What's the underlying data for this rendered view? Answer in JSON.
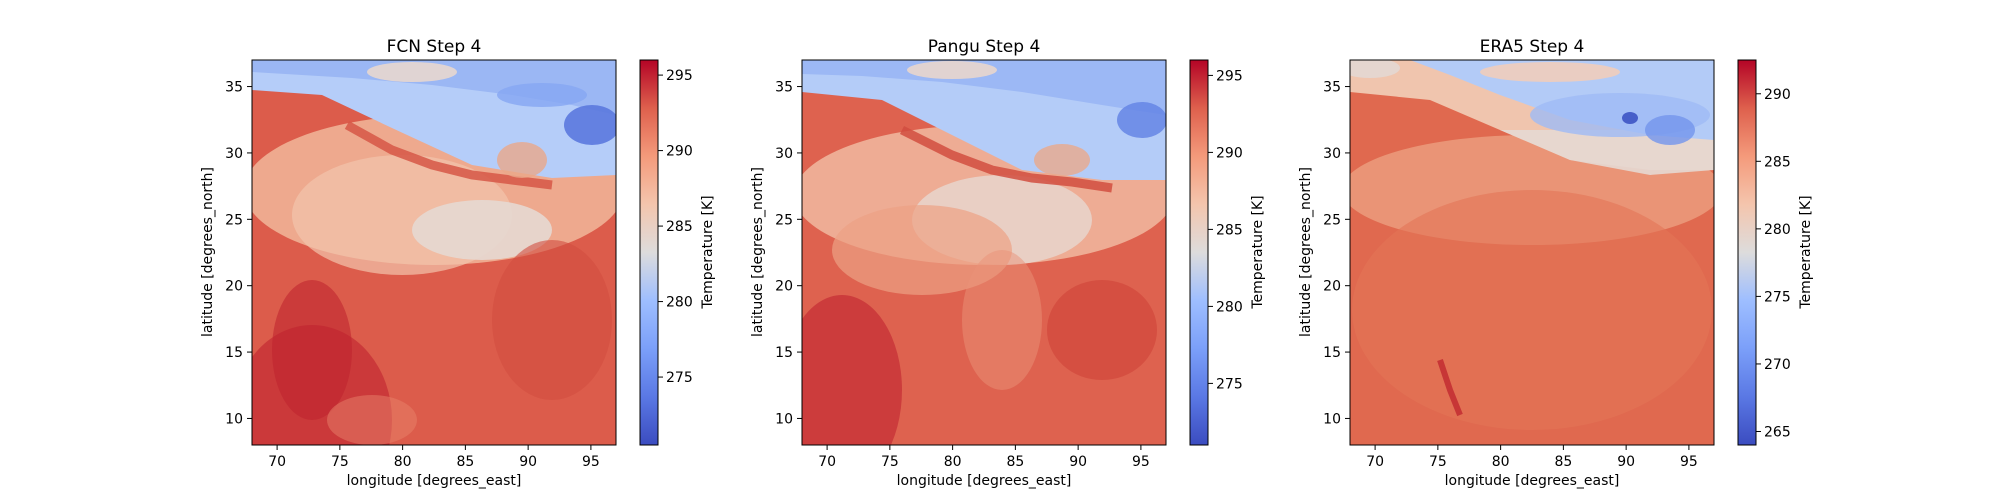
{
  "chart_data": [
    {
      "type": "heatmap",
      "title": "FCN Step 4",
      "xlabel": "longitude [degrees_east]",
      "ylabel": "latitude [degrees_north]",
      "xlim": [
        68,
        97
      ],
      "ylim": [
        8,
        37
      ],
      "xticks": [
        70,
        75,
        80,
        85,
        90,
        95
      ],
      "yticks": [
        10,
        15,
        20,
        25,
        30,
        35
      ],
      "colorbar": {
        "label": "Temperature [K]",
        "range": [
          270.5,
          296
        ],
        "ticks": [
          275,
          280,
          285,
          290,
          295
        ],
        "colormap": "coolwarm"
      }
    },
    {
      "type": "heatmap",
      "title": "Pangu Step 4",
      "xlabel": "longitude [degrees_east]",
      "ylabel": "latitude [degrees_north]",
      "xlim": [
        68,
        97
      ],
      "ylim": [
        8,
        37
      ],
      "xticks": [
        70,
        75,
        80,
        85,
        90,
        95
      ],
      "yticks": [
        10,
        15,
        20,
        25,
        30,
        35
      ],
      "colorbar": {
        "label": "Temperature [K]",
        "range": [
          271,
          296
        ],
        "ticks": [
          275,
          280,
          285,
          290,
          295
        ],
        "colormap": "coolwarm"
      }
    },
    {
      "type": "heatmap",
      "title": "ERA5 Step 4",
      "xlabel": "longitude [degrees_east]",
      "ylabel": "latitude [degrees_north]",
      "xlim": [
        68,
        97
      ],
      "ylim": [
        8,
        37
      ],
      "xticks": [
        70,
        75,
        80,
        85,
        90,
        95
      ],
      "yticks": [
        10,
        15,
        20,
        25,
        30,
        35
      ],
      "colorbar": {
        "label": "Temperature [K]",
        "range": [
          264,
          292.5
        ],
        "ticks": [
          265,
          270,
          275,
          280,
          285,
          290
        ],
        "colormap": "coolwarm"
      }
    }
  ]
}
